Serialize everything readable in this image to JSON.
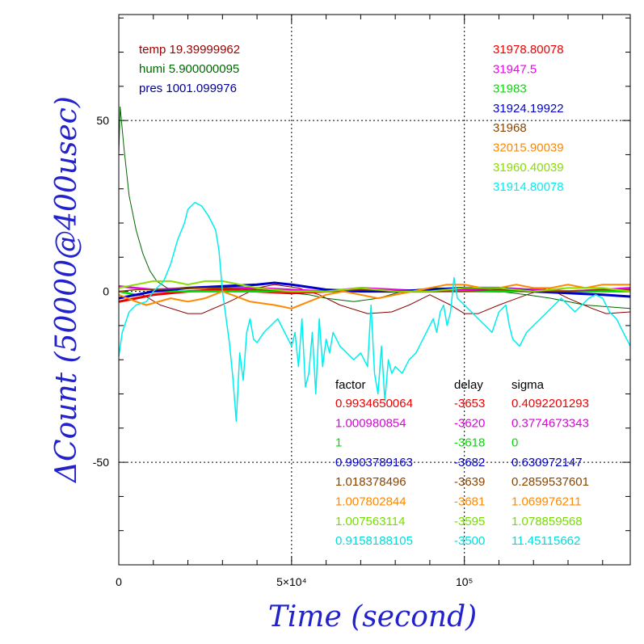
{
  "chart_data": {
    "type": "line",
    "xlabel": "Time (second)",
    "ylabel": "ΔCount (50000@400usec)",
    "xlim": [
      0,
      148000
    ],
    "ylim": [
      -80,
      81
    ],
    "grid": true,
    "x_tick_labels": [
      {
        "value": 0,
        "text": "0"
      },
      {
        "value": 50000,
        "text": "5×10⁴"
      },
      {
        "value": 100000,
        "text": "10⁵"
      }
    ],
    "y_tick_labels": [
      {
        "value": 50,
        "text": "50"
      },
      {
        "value": 0,
        "text": "0"
      },
      {
        "value": -50,
        "text": "-50"
      }
    ],
    "env": [
      {
        "name": "temp",
        "value": "19.39999962",
        "color": "#990000"
      },
      {
        "name": "humi",
        "value": "5.900000095",
        "color": "#006600"
      },
      {
        "name": "pres",
        "value": "1001.099976",
        "color": "#000099"
      }
    ],
    "series": [
      {
        "name": "temp",
        "color": "#880000",
        "x": [
          0,
          7000,
          12000,
          20000,
          24000,
          32000,
          40000,
          45000,
          52000,
          58000,
          64000,
          72000,
          79000,
          84000,
          90000,
          96000,
          100000,
          104000,
          110000,
          118000,
          124000,
          130000,
          137000,
          141000,
          148000
        ],
        "y": [
          -2,
          -1,
          -4,
          -6.5,
          -6.5,
          -3,
          1,
          2,
          1,
          -1,
          -4,
          -6.5,
          -6,
          -4,
          -1,
          -4,
          -6.5,
          -6.5,
          -4,
          -1,
          1,
          -2,
          -5,
          -6.5,
          -6
        ]
      },
      {
        "name": "humi",
        "color": "#006600",
        "x": [
          0,
          400,
          1500,
          3000,
          5000,
          7000,
          9000,
          11000,
          14000,
          18000,
          25000,
          35000,
          45000,
          55000,
          60000,
          68000,
          75000,
          82000,
          90000,
          100000,
          110000,
          118000,
          125000,
          135000,
          148000
        ],
        "y": [
          40,
          54,
          42,
          28,
          18,
          11,
          6,
          3,
          1,
          0,
          0.5,
          1,
          0,
          -1,
          -2,
          -3,
          -2,
          0,
          1,
          1,
          0,
          -1,
          -2,
          -4,
          -5
        ]
      },
      {
        "name": "31978.80078",
        "color": "#ee0000",
        "x": [
          0,
          5000,
          10000,
          20000,
          30000,
          40000,
          50000,
          60000,
          70000,
          80000,
          90000,
          100000,
          110000,
          120000,
          130000,
          140000,
          148000
        ],
        "y": [
          -3,
          -2,
          -1,
          0,
          0.5,
          0,
          -0.5,
          0,
          0.5,
          0,
          0,
          0.5,
          0,
          0.5,
          0,
          0.3,
          0.5
        ]
      },
      {
        "name": "31947.5",
        "color": "#ee00ee",
        "x": [
          0,
          5000,
          10000,
          20000,
          30000,
          40000,
          50000,
          60000,
          70000,
          80000,
          90000,
          100000,
          110000,
          120000,
          130000,
          140000,
          148000
        ],
        "y": [
          1.5,
          1,
          0.5,
          1,
          1,
          1,
          0.5,
          0,
          1,
          0.5,
          0,
          0.5,
          1,
          0.5,
          0,
          0.5,
          1
        ]
      },
      {
        "name": "31983",
        "color": "#00dd00",
        "x": [
          0,
          5000,
          10000,
          20000,
          30000,
          40000,
          50000,
          60000,
          70000,
          80000,
          90000,
          100000,
          110000,
          120000,
          130000,
          140000,
          148000
        ],
        "y": [
          0,
          -1,
          0,
          0,
          0,
          0,
          0,
          0,
          0,
          0,
          0,
          0,
          0,
          0,
          0,
          0,
          0
        ]
      },
      {
        "name": "31924.19922",
        "color": "#0000cc",
        "x": [
          0,
          5000,
          10000,
          20000,
          30000,
          40000,
          45000,
          50000,
          60000,
          70000,
          80000,
          90000,
          100000,
          110000,
          120000,
          130000,
          140000,
          148000
        ],
        "y": [
          -2,
          -1,
          0,
          1,
          1.5,
          2,
          2.5,
          2,
          0.5,
          0,
          0,
          0.5,
          1,
          1,
          0,
          -0.5,
          -1,
          -1.5
        ]
      },
      {
        "name": "31968",
        "color": "#884400",
        "x": [
          0,
          5000,
          10000,
          20000,
          30000,
          40000,
          50000,
          60000,
          70000,
          80000,
          90000,
          100000,
          110000,
          120000,
          130000,
          140000,
          148000
        ],
        "y": [
          0,
          0.5,
          0.5,
          1,
          1,
          0.5,
          0,
          0,
          0.5,
          0,
          0,
          0,
          0.5,
          0,
          0,
          0.5,
          0.5
        ]
      },
      {
        "name": "32015.90039",
        "color": "#ff8800",
        "x": [
          0,
          5000,
          8000,
          15000,
          20000,
          25000,
          30000,
          38000,
          45000,
          50000,
          55000,
          60000,
          65000,
          70000,
          75000,
          80000,
          85000,
          90000,
          95000,
          100000,
          105000,
          110000,
          115000,
          120000,
          125000,
          130000,
          135000,
          140000,
          148000
        ],
        "y": [
          -1,
          -3,
          -4,
          -2,
          -3,
          -2,
          0,
          -3,
          -4,
          -5,
          -3,
          -1,
          0,
          -1,
          -2,
          -1,
          0,
          1,
          2,
          2,
          1,
          1,
          2,
          1,
          1,
          2,
          1,
          2,
          2
        ]
      },
      {
        "name": "31960.40039",
        "color": "#88dd00",
        "x": [
          0,
          5000,
          10000,
          15000,
          20000,
          25000,
          30000,
          40000,
          50000,
          60000,
          70000,
          80000,
          90000,
          100000,
          110000,
          120000,
          130000,
          140000,
          148000
        ],
        "y": [
          1,
          2,
          3,
          3,
          2,
          3,
          3,
          1,
          0,
          0,
          1,
          0,
          0,
          1,
          1,
          0,
          1,
          1,
          0
        ]
      },
      {
        "name": "31914.80078",
        "color": "#00eeee",
        "x": [
          0,
          1000,
          3000,
          5000,
          8000,
          10000,
          13000,
          15000,
          17000,
          19000,
          20000,
          22000,
          24000,
          26000,
          28000,
          29000,
          30000,
          32000,
          33000,
          34000,
          35000,
          36000,
          37000,
          38000,
          39000,
          40000,
          42000,
          44000,
          46000,
          48000,
          50000,
          51000,
          52000,
          53000,
          54000,
          55000,
          56000,
          57000,
          58000,
          59000,
          60000,
          61000,
          62000,
          64000,
          66000,
          68000,
          70000,
          72000,
          73000,
          74000,
          75000,
          76000,
          77000,
          78000,
          79000,
          80000,
          82000,
          84000,
          86000,
          88000,
          90000,
          91000,
          92000,
          93000,
          94000,
          95000,
          96000,
          97000,
          98000,
          100000,
          102000,
          104000,
          106000,
          108000,
          110000,
          112000,
          113000,
          114000,
          116000,
          118000,
          120000,
          122000,
          124000,
          126000,
          128000,
          130000,
          132000,
          134000,
          136000,
          138000,
          140000,
          142000,
          144000,
          146000,
          148000
        ],
        "y": [
          -19,
          -12,
          -6,
          -4,
          -3,
          0,
          3,
          8,
          15,
          20,
          24,
          26,
          25,
          22,
          18,
          12,
          0,
          -15,
          -25,
          -38,
          -18,
          -26,
          -12,
          -8,
          -14,
          -15,
          -12,
          -10,
          -8,
          -12,
          -16,
          -12,
          -22,
          -8,
          -28,
          -24,
          -12,
          -30,
          -8,
          -22,
          -14,
          -18,
          -12,
          -16,
          -18,
          -20,
          -18,
          -22,
          -4,
          -24,
          -30,
          -16,
          -32,
          -20,
          -24,
          -22,
          -24,
          -20,
          -18,
          -14,
          -10,
          -8,
          -12,
          -6,
          -4,
          -10,
          -6,
          4,
          -2,
          -4,
          -6,
          -8,
          -10,
          -12,
          -6,
          -4,
          -10,
          -14,
          -16,
          -12,
          -10,
          -8,
          -6,
          -4,
          -2,
          -4,
          -6,
          -4,
          -2,
          -1,
          -2,
          -6,
          -8,
          -12,
          -16
        ]
      }
    ],
    "fit_table": {
      "headers": [
        "factor",
        "delay",
        "sigma"
      ],
      "rows": [
        {
          "factor": "0.9934650064",
          "delay": "-3653",
          "sigma": "0.4092201293",
          "color": "#ee0000"
        },
        {
          "factor": "1.000980854",
          "delay": "-3620",
          "sigma": "0.3774673343",
          "color": "#dd00dd"
        },
        {
          "factor": "1",
          "delay": "-3618",
          "sigma": "0",
          "color": "#00dd00"
        },
        {
          "factor": "0.9903789163",
          "delay": "-3682",
          "sigma": "0.630972147",
          "color": "#0000cc"
        },
        {
          "factor": "1.018378496",
          "delay": "-3639",
          "sigma": "0.2859537601",
          "color": "#884400"
        },
        {
          "factor": "1.007802844",
          "delay": "-3681",
          "sigma": "1.069976211",
          "color": "#ff8800"
        },
        {
          "factor": "1.007563114",
          "delay": "-3595",
          "sigma": "1.078859568",
          "color": "#77dd00"
        },
        {
          "factor": "0.9158188105",
          "delay": "-3500",
          "sigma": "11.45115662",
          "color": "#00dddd"
        }
      ]
    },
    "counts": [
      {
        "text": "31978.80078",
        "color": "#ee0000"
      },
      {
        "text": "31947.5",
        "color": "#ee00ee"
      },
      {
        "text": "31983",
        "color": "#00dd00"
      },
      {
        "text": "31924.19922",
        "color": "#0000cc"
      },
      {
        "text": "31968",
        "color": "#884400"
      },
      {
        "text": "32015.90039",
        "color": "#ff8800"
      },
      {
        "text": "31960.40039",
        "color": "#88dd00"
      },
      {
        "text": "31914.80078",
        "color": "#00eeee"
      }
    ],
    "colors": {
      "axis_title": "#2222cc",
      "frame": "#000000"
    }
  }
}
